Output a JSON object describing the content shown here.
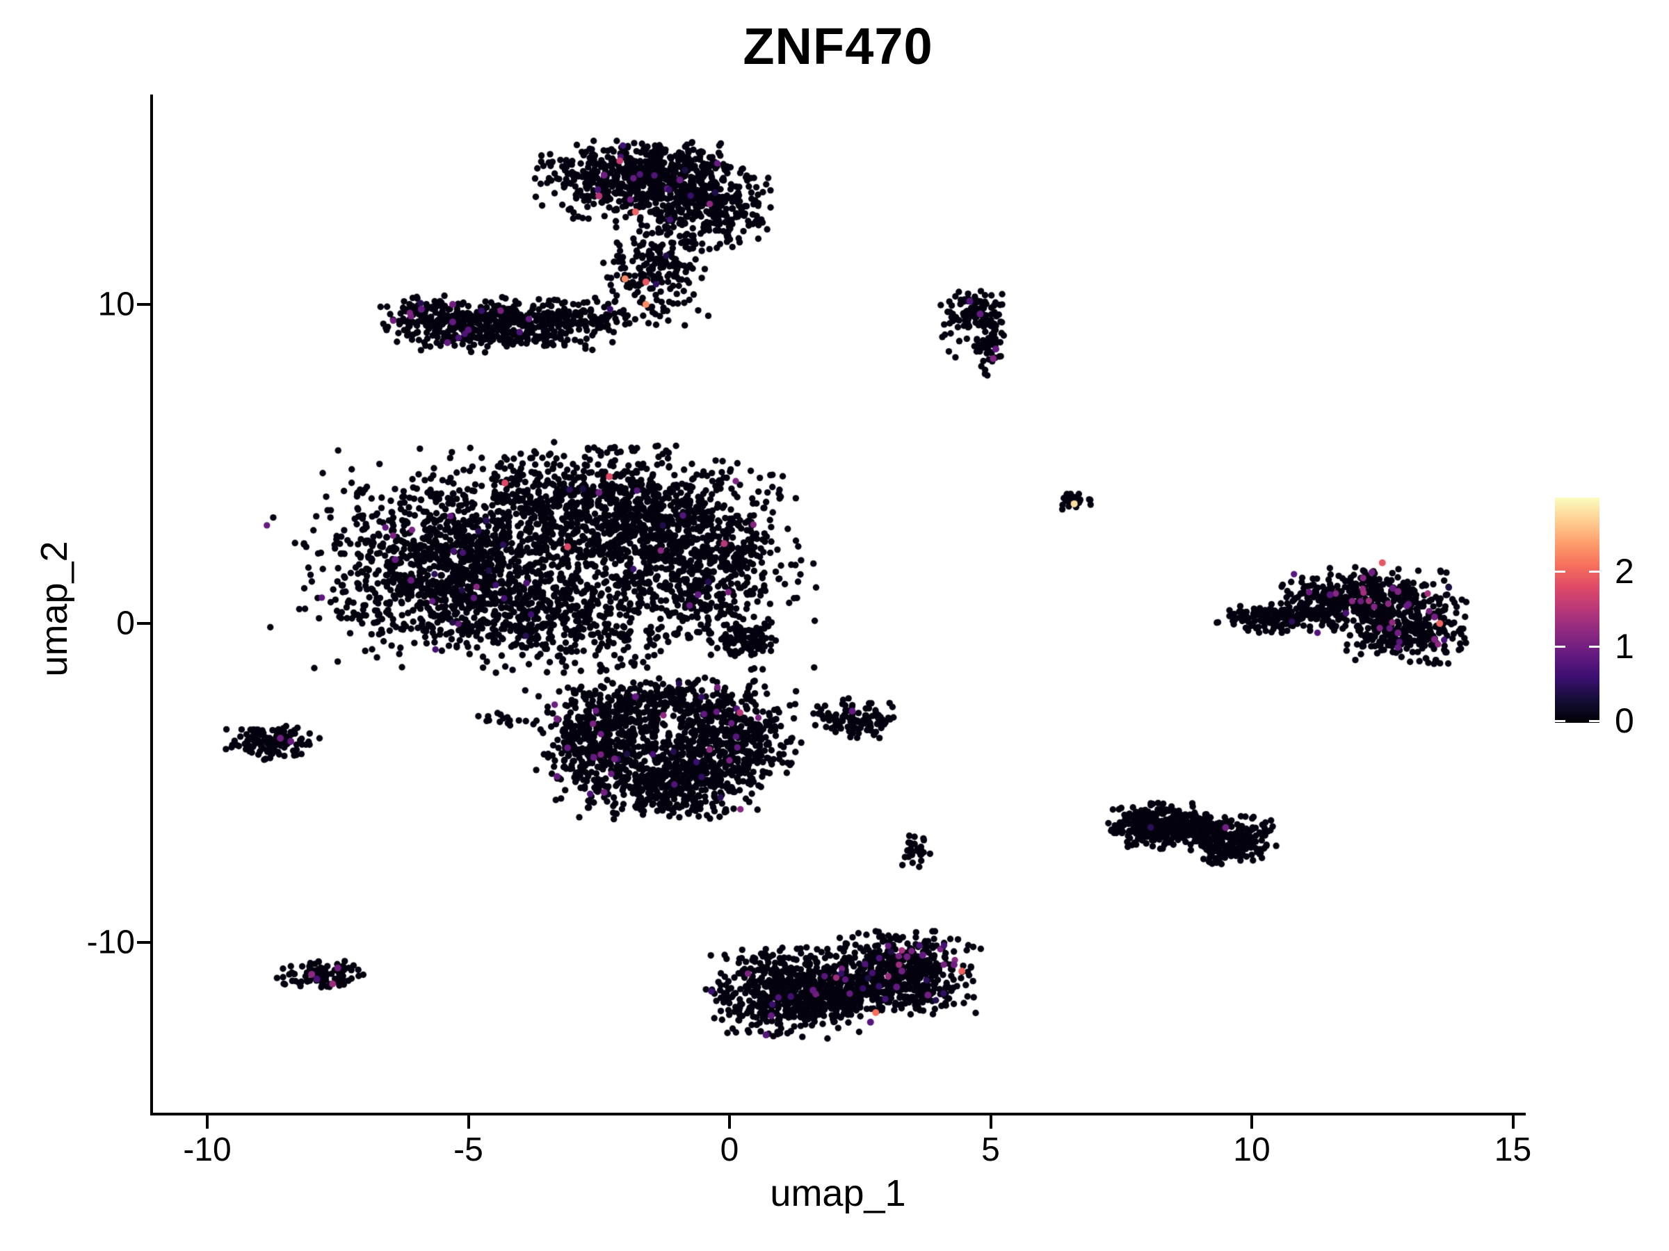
{
  "title": "ZNF470",
  "chart_data": {
    "type": "scatter",
    "title": "ZNF470",
    "xlabel": "umap_1",
    "ylabel": "umap_2",
    "xlim": [
      -11.0,
      15.2
    ],
    "ylim": [
      -15.4,
      16.5
    ],
    "x_ticks": [
      -10,
      -5,
      0,
      5,
      10,
      15
    ],
    "y_ticks": [
      -10,
      0,
      10
    ],
    "grid": false,
    "legend_position": "right",
    "point_radius_px": 4.7,
    "base_point_color": "#050210",
    "colorbar": {
      "vmin": 0,
      "vmax": 3,
      "tick_values": [
        0,
        1,
        2
      ],
      "palette": "magma",
      "stops": [
        {
          "t": 0.0,
          "c": "#000004"
        },
        {
          "t": 0.1,
          "c": "#140e36"
        },
        {
          "t": 0.2,
          "c": "#3b0f70"
        },
        {
          "t": 0.3,
          "c": "#641a80"
        },
        {
          "t": 0.4,
          "c": "#8c2981"
        },
        {
          "t": 0.5,
          "c": "#b73779"
        },
        {
          "t": 0.6,
          "c": "#de4968"
        },
        {
          "t": 0.7,
          "c": "#f7705c"
        },
        {
          "t": 0.8,
          "c": "#fe9f6d"
        },
        {
          "t": 0.9,
          "c": "#fecf92"
        },
        {
          "t": 1.0,
          "c": "#fcfdbf"
        }
      ]
    },
    "clusters": [
      {
        "name": "top-blob-left",
        "cx": -2.0,
        "cy": 13.85,
        "sx": 0.8,
        "sy": 0.6,
        "n": 420,
        "cf": 0.012,
        "vmax": 1.2
      },
      {
        "name": "top-blob-right",
        "cx": -0.4,
        "cy": 13.15,
        "sx": 0.58,
        "sy": 0.68,
        "n": 330,
        "cf": 0.01,
        "vmax": 1.2
      },
      {
        "name": "top-blob-crown",
        "cx": -1.2,
        "cy": 14.35,
        "sx": 0.55,
        "sy": 0.35,
        "n": 150,
        "cf": 0.012,
        "vmax": 1.2
      },
      {
        "name": "top-subblob",
        "cx": -1.55,
        "cy": 11.15,
        "sx": 0.42,
        "sy": 0.36,
        "n": 95,
        "cf": 0.02,
        "vmax": 1.3
      },
      {
        "name": "top-neck",
        "cx": -1.3,
        "cy": 12.2,
        "sx": 0.42,
        "sy": 0.6,
        "n": 60,
        "cf": 0.01,
        "vmax": 1.2
      },
      {
        "name": "top-trail",
        "cx": -1.25,
        "cy": 10.2,
        "sx": 0.45,
        "sy": 0.5,
        "n": 50,
        "cf": 0.02,
        "vmax": 1.2
      },
      {
        "name": "arm-main",
        "cx": -4.45,
        "cy": 9.35,
        "sx": 1.05,
        "sy": 0.4,
        "n": 500,
        "cf": 0.012,
        "vmax": 1.1
      },
      {
        "name": "arm-tip",
        "cx": -5.85,
        "cy": 9.85,
        "sx": 0.3,
        "sy": 0.3,
        "n": 60,
        "cf": 0.02,
        "vmax": 1.1
      },
      {
        "name": "arm-conn",
        "cx": -2.6,
        "cy": 9.55,
        "sx": 0.55,
        "sy": 0.3,
        "n": 60,
        "cf": 0.01,
        "vmax": 1.1
      },
      {
        "name": "hook-top",
        "cx": 4.7,
        "cy": 9.85,
        "sx": 0.3,
        "sy": 0.28,
        "n": 80,
        "cf": 0,
        "vmax": 1.2
      },
      {
        "name": "hook-strand",
        "cx": 5.0,
        "cy": 8.8,
        "sx": 0.13,
        "sy": 0.5,
        "n": 60,
        "cf": 0,
        "vmax": 1.2
      },
      {
        "name": "hook-scatter",
        "cx": 4.45,
        "cy": 9.1,
        "sx": 0.3,
        "sy": 0.5,
        "n": 14,
        "cf": 0,
        "vmax": 1.2
      },
      {
        "name": "central-left",
        "cx": -5.5,
        "cy": 1.9,
        "sx": 1.25,
        "sy": 1.25,
        "n": 850,
        "cf": 0.01,
        "vmax": 1.2
      },
      {
        "name": "central-top",
        "cx": -2.6,
        "cy": 3.5,
        "sx": 1.3,
        "sy": 0.95,
        "n": 800,
        "cf": 0.012,
        "vmax": 1.3
      },
      {
        "name": "central-right",
        "cx": -0.7,
        "cy": 2.1,
        "sx": 0.95,
        "sy": 1.25,
        "n": 650,
        "cf": 0.012,
        "vmax": 1.3
      },
      {
        "name": "central-low",
        "cx": -3.5,
        "cy": 0.1,
        "sx": 1.55,
        "sy": 0.75,
        "n": 500,
        "cf": 0.01,
        "vmax": 1.2
      },
      {
        "name": "central-halo",
        "cx": -3.4,
        "cy": 2.0,
        "sx": 2.5,
        "sy": 1.7,
        "n": 420,
        "cf": 0.012,
        "vmax": 1.2
      },
      {
        "name": "central-knot",
        "cx": 0.25,
        "cy": -0.55,
        "sx": 0.3,
        "sy": 0.25,
        "n": 90,
        "cf": 0,
        "vmax": 1.2
      },
      {
        "name": "central-dash",
        "cx": -4.3,
        "cy": -3.0,
        "sx": 0.33,
        "sy": 0.1,
        "n": 14,
        "cf": 0,
        "vmax": 1.2
      },
      {
        "name": "lower-left",
        "cx": -2.55,
        "cy": -3.6,
        "sx": 0.55,
        "sy": 0.75,
        "n": 330,
        "cf": 0.02,
        "vmax": 1.2
      },
      {
        "name": "lower-bottom",
        "cx": -1.25,
        "cy": -5.0,
        "sx": 0.95,
        "sy": 0.55,
        "n": 420,
        "cf": 0.02,
        "vmax": 1.2
      },
      {
        "name": "lower-right",
        "cx": -0.05,
        "cy": -3.5,
        "sx": 0.65,
        "sy": 0.8,
        "n": 420,
        "cf": 0.025,
        "vmax": 1.3
      },
      {
        "name": "lower-top",
        "cx": -1.4,
        "cy": -2.5,
        "sx": 0.8,
        "sy": 0.4,
        "n": 190,
        "cf": 0.015,
        "vmax": 1.2
      },
      {
        "name": "lower-halo",
        "cx": -1.4,
        "cy": -3.9,
        "sx": 1.15,
        "sy": 1.0,
        "n": 170,
        "cf": 0.02,
        "vmax": 1.2
      },
      {
        "name": "left-small",
        "cx": -8.8,
        "cy": -3.75,
        "sx": 0.4,
        "sy": 0.25,
        "n": 130,
        "cf": 0.008,
        "vmax": 1.1
      },
      {
        "name": "mid-small",
        "cx": 2.35,
        "cy": -3.05,
        "sx": 0.36,
        "sy": 0.32,
        "n": 105,
        "cf": 0,
        "vmax": 1.1
      },
      {
        "name": "tiny-mid",
        "cx": 3.55,
        "cy": -7.2,
        "sx": 0.15,
        "sy": 0.28,
        "n": 30,
        "cf": 0,
        "vmax": 1.1
      },
      {
        "name": "rightmid-left",
        "cx": 8.2,
        "cy": -6.35,
        "sx": 0.45,
        "sy": 0.33,
        "n": 270,
        "cf": 0.004,
        "vmax": 1.1
      },
      {
        "name": "rightmid-right",
        "cx": 9.6,
        "cy": -6.8,
        "sx": 0.4,
        "sy": 0.35,
        "n": 240,
        "cf": 0.004,
        "vmax": 1.1
      },
      {
        "name": "rightmid-bridge",
        "cx": 8.95,
        "cy": -6.45,
        "sx": 0.3,
        "sy": 0.22,
        "n": 70,
        "cf": 0,
        "vmax": 1.1
      },
      {
        "name": "bottom-left-small",
        "cx": -7.8,
        "cy": -11.0,
        "sx": 0.4,
        "sy": 0.22,
        "n": 85,
        "cf": 0,
        "vmax": 1.2
      },
      {
        "name": "bc-left",
        "cx": 1.05,
        "cy": -11.6,
        "sx": 0.72,
        "sy": 0.68,
        "n": 520,
        "cf": 0.015,
        "vmax": 1.2
      },
      {
        "name": "bc-right",
        "cx": 3.3,
        "cy": -11.0,
        "sx": 0.72,
        "sy": 0.62,
        "n": 520,
        "cf": 0.04,
        "vmax": 1.4
      },
      {
        "name": "bc-bridge",
        "cx": 2.15,
        "cy": -11.4,
        "sx": 0.45,
        "sy": 0.45,
        "n": 140,
        "cf": 0.02,
        "vmax": 1.2
      },
      {
        "name": "right-main-top",
        "cx": 12.3,
        "cy": 0.8,
        "sx": 0.8,
        "sy": 0.45,
        "n": 300,
        "cf": 0.035,
        "vmax": 1.4
      },
      {
        "name": "right-main-low",
        "cx": 12.9,
        "cy": -0.25,
        "sx": 0.55,
        "sy": 0.5,
        "n": 280,
        "cf": 0.035,
        "vmax": 1.4
      },
      {
        "name": "right-main-left",
        "cx": 11.5,
        "cy": 0.55,
        "sx": 0.45,
        "sy": 0.4,
        "n": 140,
        "cf": 0.02,
        "vmax": 1.2
      },
      {
        "name": "right-tail",
        "cx": 10.35,
        "cy": 0.15,
        "sx": 0.5,
        "sy": 0.22,
        "n": 120,
        "cf": 0.008,
        "vmax": 1.1
      },
      {
        "name": "tiny-top",
        "cx": 6.62,
        "cy": 3.85,
        "sx": 0.15,
        "sy": 0.13,
        "n": 30,
        "cf": 0,
        "vmax": 1.2
      }
    ],
    "highlights": [
      [
        -2.1,
        14.5,
        1.6
      ],
      [
        -2.4,
        14.05,
        1.0
      ],
      [
        -0.95,
        13.9,
        0.9
      ],
      [
        -2.5,
        13.4,
        1.5
      ],
      [
        -1.8,
        12.9,
        2.0
      ],
      [
        -2.0,
        10.8,
        2.3
      ],
      [
        -1.6,
        10.7,
        1.9
      ],
      [
        -1.6,
        10.0,
        2.3
      ],
      [
        -5.9,
        9.85,
        0.9
      ],
      [
        -5.3,
        10.0,
        1.0
      ],
      [
        -5.3,
        9.45,
        0.9
      ],
      [
        -5.0,
        9.2,
        0.8
      ],
      [
        -5.4,
        8.8,
        0.9
      ],
      [
        4.6,
        10.1,
        0.8
      ],
      [
        4.8,
        9.7,
        0.9
      ],
      [
        5.1,
        8.6,
        0.9
      ],
      [
        5.05,
        8.3,
        1.1
      ],
      [
        -4.3,
        4.4,
        1.8
      ],
      [
        -2.3,
        4.6,
        1.8
      ],
      [
        -2.5,
        4.1,
        1.0
      ],
      [
        -3.1,
        2.4,
        1.8
      ],
      [
        -0.6,
        0.9,
        0.9
      ],
      [
        -6.4,
        2.0,
        0.9
      ],
      [
        -6.1,
        1.35,
        0.9
      ],
      [
        -0.1,
        2.5,
        1.5
      ],
      [
        -3.3,
        -3.0,
        1.0
      ],
      [
        -3.1,
        -3.9,
        0.9
      ],
      [
        -2.6,
        -4.2,
        0.9
      ],
      [
        -2.2,
        -4.25,
        1.0
      ],
      [
        -3.3,
        -4.8,
        0.9
      ],
      [
        -2.4,
        -5.3,
        1.0
      ],
      [
        -1.8,
        -2.3,
        0.9
      ],
      [
        0.2,
        -2.8,
        1.5
      ],
      [
        -8.6,
        -3.6,
        1.0
      ],
      [
        -8.4,
        -3.7,
        0.9
      ],
      [
        -8.0,
        -11.0,
        1.2
      ],
      [
        -7.9,
        -11.15,
        0.7
      ],
      [
        -7.5,
        -10.8,
        1.0
      ],
      [
        -7.6,
        -11.3,
        1.3
      ],
      [
        3.4,
        -10.45,
        1.0
      ],
      [
        3.7,
        -10.4,
        0.9
      ],
      [
        3.3,
        -10.9,
        1.0
      ],
      [
        3.2,
        -11.4,
        0.9
      ],
      [
        3.8,
        -11.65,
        1.0
      ],
      [
        4.3,
        -10.7,
        1.0
      ],
      [
        4.45,
        -10.9,
        2.0
      ],
      [
        2.8,
        -12.2,
        2.1
      ],
      [
        1.6,
        -11.5,
        0.9
      ],
      [
        2.7,
        -12.5,
        0.8
      ],
      [
        0.8,
        -12.3,
        0.9
      ],
      [
        0.7,
        -12.9,
        0.8
      ],
      [
        12.3,
        1.6,
        1.0
      ],
      [
        12.7,
        1.1,
        0.9
      ],
      [
        12.8,
        1.0,
        1.1
      ],
      [
        13.0,
        0.6,
        0.9
      ],
      [
        13.5,
        0.2,
        1.0
      ],
      [
        13.5,
        -0.5,
        1.1
      ],
      [
        12.8,
        -0.75,
        0.9
      ],
      [
        12.8,
        -0.3,
        1.0
      ],
      [
        11.5,
        0.9,
        0.8
      ],
      [
        13.6,
        0.0,
        2.0
      ],
      [
        12.5,
        1.9,
        1.9
      ],
      [
        9.5,
        -6.4,
        1.0
      ],
      [
        6.6,
        3.75,
        2.8
      ],
      [
        2.35,
        -2.75,
        0.9
      ]
    ],
    "strays": [
      [
        -7.95,
        -1.4
      ],
      [
        2.8,
        -9.65
      ],
      [
        3.2,
        -9.9
      ],
      [
        -7.85,
        -3.6
      ]
    ]
  }
}
